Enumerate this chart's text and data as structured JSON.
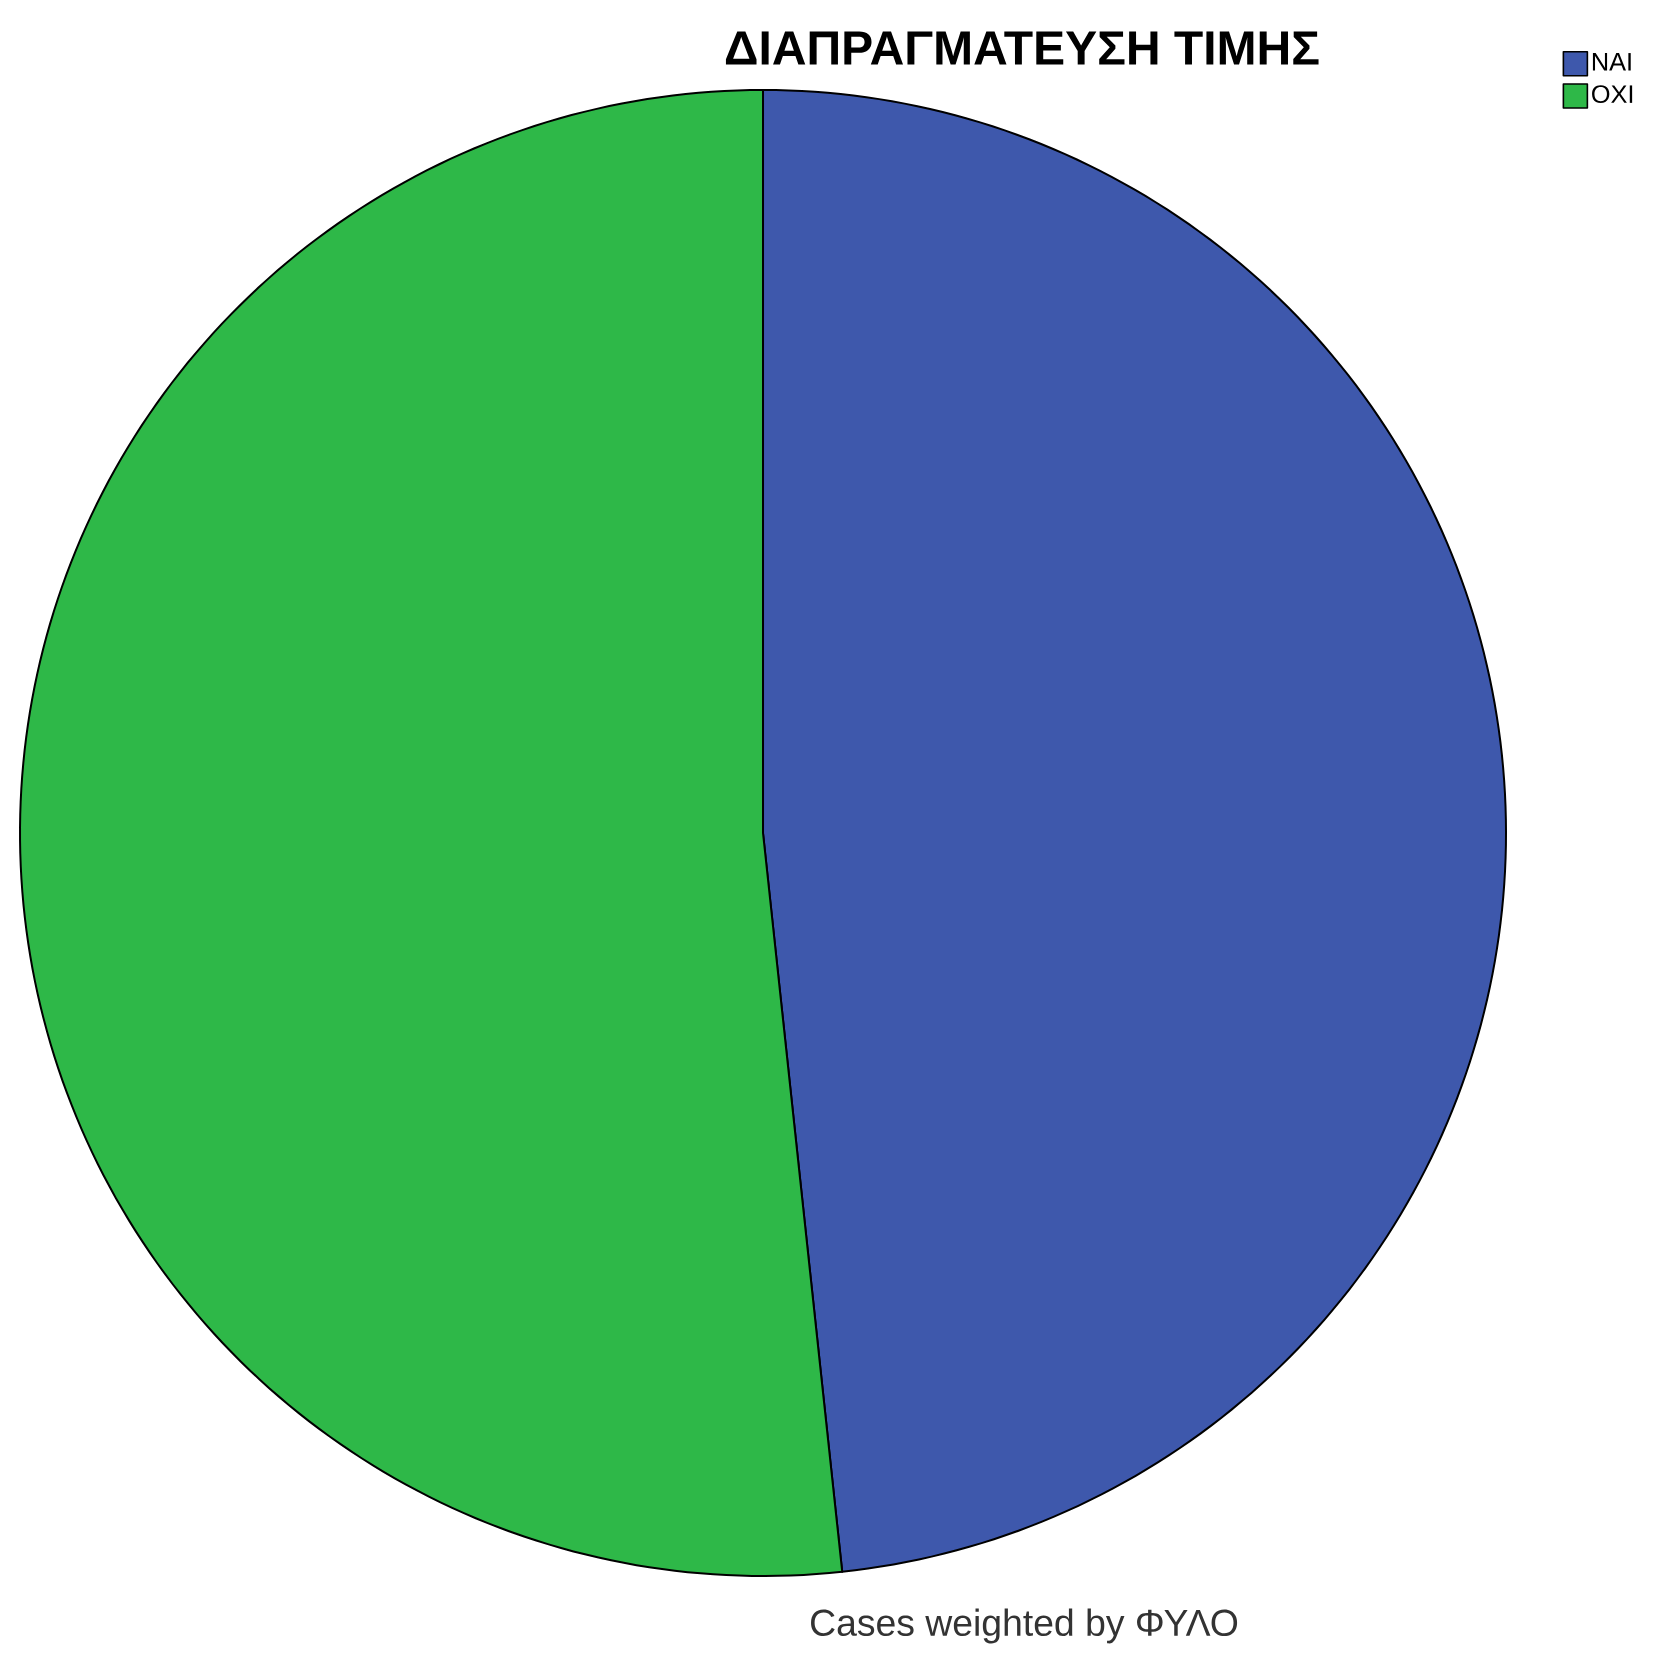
{
  "chart_data": {
    "type": "pie",
    "title": "ΔΙΑΠΡΑΓΜΑΤΕΥΣΗ ΤΙΜΗΣ",
    "categories": [
      "ΝΑΙ",
      "ΟΧΙ"
    ],
    "values": [
      48.3,
      51.7
    ],
    "colors": [
      "#3e58ac",
      "#2eb848"
    ],
    "legend": "top right",
    "annotations": [
      "Cases weighted by ΦΥΛΟ"
    ]
  }
}
